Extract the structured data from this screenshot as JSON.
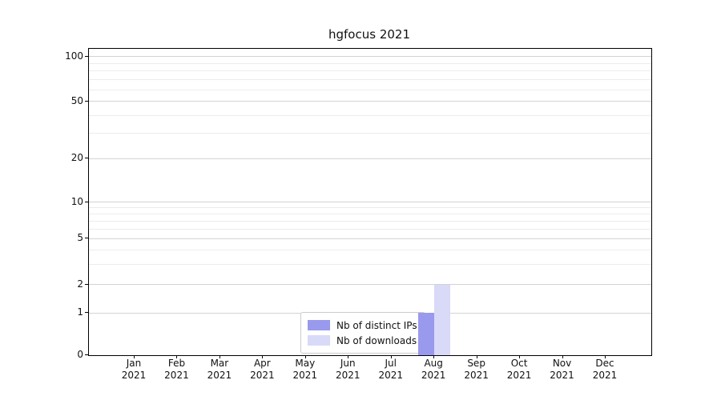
{
  "chart_data": {
    "type": "bar",
    "title": "hgfocus 2021",
    "categories": [
      "Jan 2021",
      "Feb 2021",
      "Mar 2021",
      "Apr 2021",
      "May 2021",
      "Jun 2021",
      "Jul 2021",
      "Aug 2021",
      "Sep 2021",
      "Oct 2021",
      "Nov 2021",
      "Dec 2021"
    ],
    "series": [
      {
        "name": "Nb of distinct IPs",
        "color": "#9999ee",
        "values": [
          0,
          0,
          0,
          0,
          0,
          0,
          0,
          1,
          0,
          0,
          0,
          0
        ]
      },
      {
        "name": "Nb of downloads",
        "color": "#d9d9f8",
        "values": [
          0,
          0,
          0,
          0,
          0,
          0,
          0,
          2,
          0,
          0,
          0,
          0
        ]
      }
    ],
    "yticks": [
      0,
      1,
      2,
      5,
      10,
      20,
      50,
      100
    ],
    "minor_yticks": [
      3,
      4,
      6,
      7,
      8,
      9,
      30,
      40,
      60,
      70,
      80,
      90
    ],
    "y_scale": "log",
    "ylim": [
      0,
      100
    ],
    "grid": "horizontal",
    "legend_position": "lower center",
    "layout": {
      "ytick_fractions": {
        "0": 0,
        "1": 0.138,
        "2": 0.23,
        "5": 0.381,
        "10": 0.499,
        "20": 0.642,
        "50": 0.828,
        "100": 0.974
      }
    }
  }
}
